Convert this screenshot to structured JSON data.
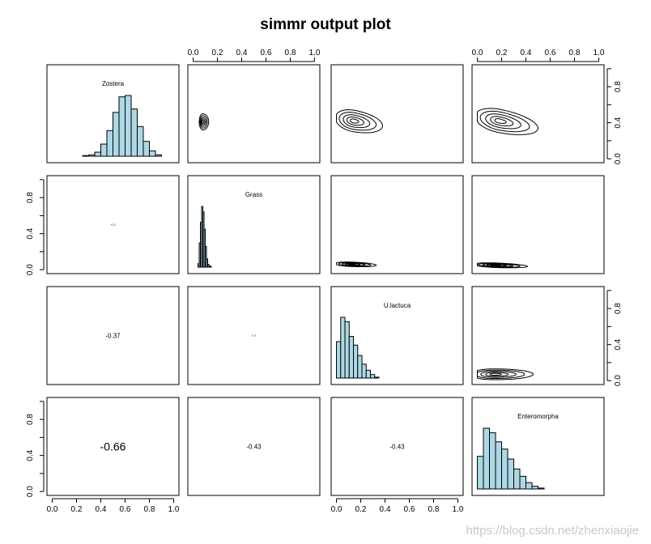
{
  "watermark": "https://blog.csdn.net/zhenxiaojie",
  "chart_data": {
    "type": "pairs",
    "title": "simmr output plot",
    "variables": [
      "Zostera",
      "Grass",
      "U.lactuca",
      "Enteromorpha"
    ],
    "axis_range": [
      0,
      1
    ],
    "x_ticks": [
      "0.0",
      "0.2",
      "0.4",
      "0.6",
      "0.8",
      "1.0"
    ],
    "y_ticks": [
      "0.0",
      "0.4",
      "0.8"
    ],
    "histogram_fill": "#add8e6",
    "correlations": [
      {
        "row": 1,
        "col": 0,
        "value": "-0.11",
        "size": "tiny"
      },
      {
        "row": 2,
        "col": 0,
        "value": "-0.37",
        "size": "small"
      },
      {
        "row": 2,
        "col": 1,
        "value": "0.17",
        "size": "tiny"
      },
      {
        "row": 3,
        "col": 0,
        "value": "-0.66",
        "size": "large"
      },
      {
        "row": 3,
        "col": 1,
        "value": "-0.43",
        "size": "small"
      },
      {
        "row": 3,
        "col": 2,
        "value": "-0.43",
        "size": "small"
      }
    ],
    "histograms": [
      {
        "variable": "Zostera",
        "bin_width": 0.05,
        "bins": [
          [
            0.25,
            0.3,
            1
          ],
          [
            0.3,
            0.35,
            2
          ],
          [
            0.35,
            0.4,
            6
          ],
          [
            0.4,
            0.45,
            18
          ],
          [
            0.45,
            0.5,
            38
          ],
          [
            0.5,
            0.55,
            65
          ],
          [
            0.55,
            0.6,
            88
          ],
          [
            0.6,
            0.65,
            90
          ],
          [
            0.65,
            0.7,
            70
          ],
          [
            0.7,
            0.75,
            44
          ],
          [
            0.75,
            0.8,
            22
          ],
          [
            0.8,
            0.85,
            8
          ],
          [
            0.85,
            0.9,
            2
          ]
        ]
      },
      {
        "variable": "Grass",
        "bin_width": 0.01,
        "bins": [
          [
            0.04,
            0.05,
            5
          ],
          [
            0.05,
            0.06,
            35
          ],
          [
            0.06,
            0.07,
            65
          ],
          [
            0.07,
            0.08,
            88
          ],
          [
            0.08,
            0.09,
            80
          ],
          [
            0.09,
            0.1,
            55
          ],
          [
            0.1,
            0.11,
            30
          ],
          [
            0.11,
            0.12,
            12
          ],
          [
            0.12,
            0.13,
            4
          ],
          [
            0.13,
            0.14,
            2
          ],
          [
            0.14,
            0.15,
            1
          ]
        ]
      },
      {
        "variable": "U.lactuca",
        "bin_width": 0.035,
        "bins": [
          [
            0.0,
            0.035,
            42
          ],
          [
            0.035,
            0.07,
            70
          ],
          [
            0.07,
            0.105,
            65
          ],
          [
            0.105,
            0.14,
            48
          ],
          [
            0.14,
            0.175,
            38
          ],
          [
            0.175,
            0.21,
            26
          ],
          [
            0.21,
            0.245,
            16
          ],
          [
            0.245,
            0.28,
            9
          ],
          [
            0.28,
            0.315,
            4
          ],
          [
            0.315,
            0.35,
            1
          ]
        ]
      },
      {
        "variable": "Enteromorpha",
        "bin_width": 0.05,
        "bins": [
          [
            0.0,
            0.05,
            36
          ],
          [
            0.05,
            0.1,
            67
          ],
          [
            0.1,
            0.15,
            62
          ],
          [
            0.15,
            0.2,
            52
          ],
          [
            0.2,
            0.25,
            44
          ],
          [
            0.25,
            0.3,
            33
          ],
          [
            0.3,
            0.35,
            22
          ],
          [
            0.35,
            0.4,
            14
          ],
          [
            0.4,
            0.45,
            7
          ],
          [
            0.45,
            0.5,
            3
          ],
          [
            0.5,
            0.55,
            1
          ]
        ]
      }
    ],
    "contours": [
      {
        "row": 0,
        "col": 1,
        "x_var": "Grass",
        "y_var": "Zostera",
        "center": [
          0.08,
          0.41
        ],
        "spread": [
          0.03,
          0.09
        ],
        "tilt": 0.0
      },
      {
        "row": 0,
        "col": 2,
        "x_var": "U.lactuca",
        "y_var": "Zostera",
        "center": [
          0.14,
          0.42
        ],
        "spread": [
          0.15,
          0.12
        ],
        "tilt": -0.45
      },
      {
        "row": 0,
        "col": 3,
        "x_var": "Enteromorpha",
        "y_var": "Zostera",
        "center": [
          0.18,
          0.42
        ],
        "spread": [
          0.2,
          0.13
        ],
        "tilt": -0.5
      },
      {
        "row": 1,
        "col": 2,
        "x_var": "U.lactuca",
        "y_var": "Grass",
        "center": [
          0.12,
          0.06
        ],
        "spread": [
          0.13,
          0.025
        ],
        "tilt": -0.1
      },
      {
        "row": 1,
        "col": 3,
        "x_var": "Enteromorpha",
        "y_var": "Grass",
        "center": [
          0.14,
          0.05
        ],
        "spread": [
          0.17,
          0.025
        ],
        "tilt": -0.1
      },
      {
        "row": 2,
        "col": 3,
        "x_var": "Enteromorpha",
        "y_var": "U.lactuca",
        "center": [
          0.14,
          0.07
        ],
        "spread": [
          0.2,
          0.06
        ],
        "tilt": 0.0
      }
    ]
  }
}
